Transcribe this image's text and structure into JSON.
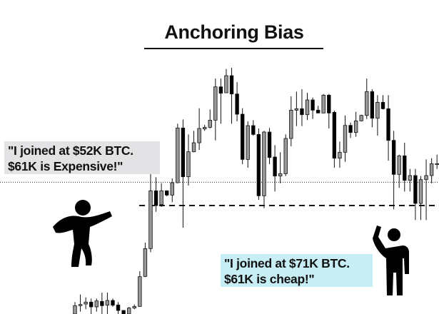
{
  "title": "Anchoring Bias",
  "quotes": {
    "left": {
      "line1": "\"I joined at $52K BTC.",
      "line2": "$61K is Expensive!\"",
      "bg": "#e3e3e6"
    },
    "right": {
      "line1": "\"I joined at $71K BTC.",
      "line2": "$61K is cheap!\"",
      "bg": "#c8eef5"
    }
  },
  "figures": {
    "left": "jumping-person-icon",
    "right": "person-raising-hand-icon"
  },
  "colors": {
    "bullish": "#999999",
    "bearish": "#000000",
    "outline": "#111111"
  },
  "chart_data": {
    "type": "candlestick",
    "title": "",
    "xlabel": "",
    "ylabel": "",
    "axes_visible": false,
    "grid": false,
    "ylim": [
      0,
      105
    ],
    "ohlc_fields": [
      "open",
      "high",
      "low",
      "close"
    ],
    "candles": [
      [
        0,
        5,
        0,
        3.5
      ],
      [
        3.5,
        8.2,
        1,
        4
      ],
      [
        4.2,
        7,
        2,
        5
      ],
      [
        5,
        6.5,
        0,
        3
      ],
      [
        3,
        6.5,
        1,
        5.5
      ],
      [
        5.3,
        9,
        0,
        3.5
      ],
      [
        3.7,
        9,
        0,
        5.7
      ],
      [
        5.7,
        6.5,
        3,
        3.7
      ],
      [
        3.8,
        5,
        0,
        1.5
      ],
      [
        1.5,
        1.5,
        0,
        0
      ],
      [
        0,
        3,
        0,
        2.5
      ],
      [
        2.5,
        4,
        2,
        3.2
      ],
      [
        3.2,
        18,
        3,
        15.7
      ],
      [
        15.8,
        30,
        15.5,
        27.5
      ],
      [
        27.5,
        59,
        26,
        51.8
      ],
      [
        51.8,
        57.5,
        43,
        45.6
      ],
      [
        46,
        55,
        45,
        51.8
      ],
      [
        51.8,
        52,
        49.5,
        50
      ],
      [
        50,
        57,
        47,
        55.2
      ],
      [
        55.2,
        80,
        55,
        78.2
      ],
      [
        78.2,
        81.8,
        36.3,
        57.7
      ],
      [
        57.7,
        75.5,
        54,
        68.2
      ],
      [
        68.2,
        77,
        68,
        72
      ],
      [
        72,
        86.5,
        69,
        78
      ],
      [
        77.8,
        79.5,
        77,
        78.5
      ],
      [
        78.5,
        86,
        78,
        81.5
      ],
      [
        81.5,
        99,
        73,
        95.5
      ],
      [
        95.5,
        99,
        80,
        92.8
      ],
      [
        93,
        103,
        93,
        100.2
      ],
      [
        100.2,
        103.5,
        80,
        92.5
      ],
      [
        92.5,
        97.5,
        81,
        84
      ],
      [
        84,
        86.5,
        63,
        65
      ],
      [
        65,
        81,
        61.5,
        79.2
      ],
      [
        79.2,
        81.5,
        75,
        75.5
      ],
      [
        75.5,
        78,
        48,
        49.7
      ],
      [
        49.7,
        77,
        44.5,
        76.5
      ],
      [
        76.5,
        78.2,
        63,
        65.8
      ],
      [
        66,
        71,
        51.5,
        58
      ],
      [
        58,
        68,
        55,
        59
      ],
      [
        59,
        75.5,
        58,
        73.8
      ],
      [
        73.8,
        91.5,
        70.5,
        85.7
      ],
      [
        85.7,
        93.5,
        79,
        86.3
      ],
      [
        86.3,
        94.5,
        79,
        83.8
      ],
      [
        83.8,
        93,
        81.5,
        90
      ],
      [
        90,
        91,
        82,
        85.7
      ],
      [
        85.7,
        87.5,
        84.5,
        84.5
      ],
      [
        84.5,
        92.5,
        84.5,
        92
      ],
      [
        92,
        92.5,
        78,
        84.5
      ],
      [
        84.8,
        85.5,
        61.5,
        65.5
      ],
      [
        65.5,
        72.5,
        61.5,
        68
      ],
      [
        68,
        83.5,
        64,
        79.3
      ],
      [
        79.3,
        80.5,
        74,
        76.3
      ],
      [
        76.3,
        85,
        74.5,
        81.2
      ],
      [
        81.2,
        83.8,
        81,
        83.5
      ],
      [
        83.5,
        99,
        82,
        93.5
      ],
      [
        93.5,
        94.5,
        78.5,
        82.3
      ],
      [
        82.3,
        92,
        75,
        89
      ],
      [
        89,
        92,
        86,
        86.3
      ],
      [
        86.3,
        92,
        64.5,
        73
      ],
      [
        73,
        77,
        44,
        58.7
      ],
      [
        58.7,
        67,
        53,
        66.5
      ],
      [
        66.5,
        72,
        51.5,
        56.2
      ],
      [
        56.2,
        61,
        51.5,
        58.2
      ],
      [
        58.2,
        61,
        39.5,
        46.5
      ],
      [
        46.5,
        58,
        39.5,
        56.5
      ],
      [
        56.5,
        65,
        39.5,
        58.2
      ],
      [
        58.2,
        65.5,
        55,
        63.2
      ],
      [
        63,
        67,
        61,
        63.2
      ]
    ],
    "reference_lines": [
      {
        "style": "dashed",
        "value": 45.6,
        "label": "$61K"
      },
      {
        "style": "dotted",
        "value": 55.4
      }
    ]
  }
}
